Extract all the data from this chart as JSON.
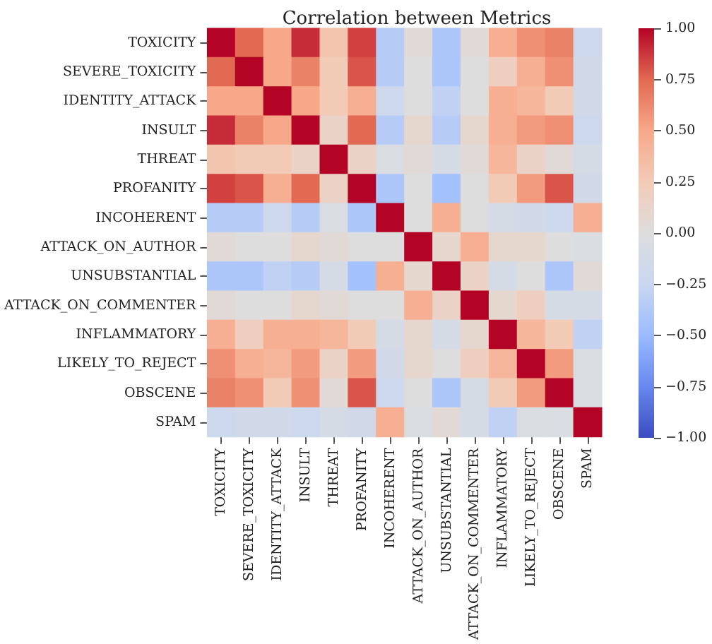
{
  "chart_data": {
    "type": "heatmap",
    "title": "Correlation between Metrics",
    "categories": [
      "TOXICITY",
      "SEVERE_TOXICITY",
      "IDENTITY_ATTACK",
      "INSULT",
      "THREAT",
      "PROFANITY",
      "INCOHERENT",
      "ATTACK_ON_AUTHOR",
      "UNSUBSTANTIAL",
      "ATTACK_ON_COMMENTER",
      "INFLAMMATORY",
      "LIKELY_TO_REJECT",
      "OBSCENE",
      "SPAM"
    ],
    "y_categories": [
      "TOXICITY",
      "SEVERE_TOXICITY",
      "IDENTITY_ATTACK",
      "INSULT",
      "THREAT",
      "PROFANITY",
      "INCOHERENT",
      "ATTACK_ON_AUTHOR",
      "UNSUBSTANTIAL",
      "ATTACK_ON_COMMENTER",
      "INFLAMMATORY",
      "LIKELY_TO_REJECT",
      "OBSCENE",
      "SPAM"
    ],
    "cells": [
      [
        1,
        0.75,
        0.5,
        0.9,
        0.3,
        0.85,
        -0.35,
        0.05,
        -0.4,
        0.05,
        0.45,
        0.6,
        0.65,
        -0.2
      ],
      [
        0.75,
        1,
        0.5,
        0.65,
        0.25,
        0.8,
        -0.35,
        0,
        -0.4,
        0,
        0.2,
        0.45,
        0.6,
        -0.15
      ],
      [
        0.5,
        0.5,
        1,
        0.5,
        0.25,
        0.45,
        -0.2,
        0,
        -0.3,
        0,
        0.45,
        0.4,
        0.25,
        -0.15
      ],
      [
        0.9,
        0.65,
        0.5,
        1,
        0.15,
        0.75,
        -0.35,
        0.1,
        -0.35,
        0.1,
        0.45,
        0.55,
        0.6,
        -0.2
      ],
      [
        0.3,
        0.25,
        0.25,
        0.15,
        1,
        0.15,
        -0.05,
        0.05,
        -0.1,
        0.05,
        0.4,
        0.15,
        0.05,
        -0.1
      ],
      [
        0.85,
        0.8,
        0.45,
        0.75,
        0.15,
        1,
        -0.4,
        0,
        -0.45,
        0,
        0.25,
        0.55,
        0.8,
        -0.15
      ],
      [
        -0.35,
        -0.35,
        -0.2,
        -0.35,
        -0.05,
        -0.4,
        1,
        0,
        0.45,
        0,
        -0.1,
        -0.15,
        -0.2,
        0.45
      ],
      [
        0.05,
        0,
        0,
        0.1,
        0.05,
        0,
        0,
        1,
        0.1,
        0.45,
        0.1,
        0.1,
        0,
        -0.05
      ],
      [
        -0.4,
        -0.4,
        -0.3,
        -0.35,
        -0.1,
        -0.45,
        0.45,
        0.1,
        1,
        0.15,
        -0.1,
        0,
        -0.4,
        0.05
      ],
      [
        0.05,
        0,
        0,
        0.1,
        0.05,
        0,
        0,
        0.45,
        0.15,
        1,
        0.1,
        0.2,
        -0.1,
        -0.1
      ],
      [
        0.45,
        0.2,
        0.45,
        0.45,
        0.4,
        0.25,
        -0.1,
        0.1,
        -0.1,
        0.1,
        1,
        0.4,
        0.25,
        -0.3
      ],
      [
        0.6,
        0.45,
        0.4,
        0.55,
        0.15,
        0.55,
        -0.15,
        0.1,
        0,
        0.2,
        0.4,
        1,
        0.55,
        -0.05
      ],
      [
        0.65,
        0.6,
        0.25,
        0.6,
        0.05,
        0.8,
        -0.2,
        0,
        -0.4,
        -0.1,
        0.25,
        0.55,
        1,
        -0.05
      ],
      [
        -0.2,
        -0.15,
        -0.15,
        -0.2,
        -0.1,
        -0.15,
        0.45,
        -0.05,
        0.05,
        -0.1,
        -0.3,
        -0.05,
        -0.05,
        1
      ]
    ],
    "clim": [
      -1,
      1
    ],
    "cticks": [
      {
        "value": -1,
        "label": "−1.00"
      },
      {
        "value": -0.75,
        "label": "−0.75"
      },
      {
        "value": -0.5,
        "label": "−0.50"
      },
      {
        "value": -0.25,
        "label": "−0.25"
      },
      {
        "value": 0,
        "label": "0.00"
      },
      {
        "value": 0.25,
        "label": "0.25"
      },
      {
        "value": 0.5,
        "label": "0.50"
      },
      {
        "value": 0.75,
        "label": "0.75"
      },
      {
        "value": 1,
        "label": "1.00"
      }
    ]
  }
}
